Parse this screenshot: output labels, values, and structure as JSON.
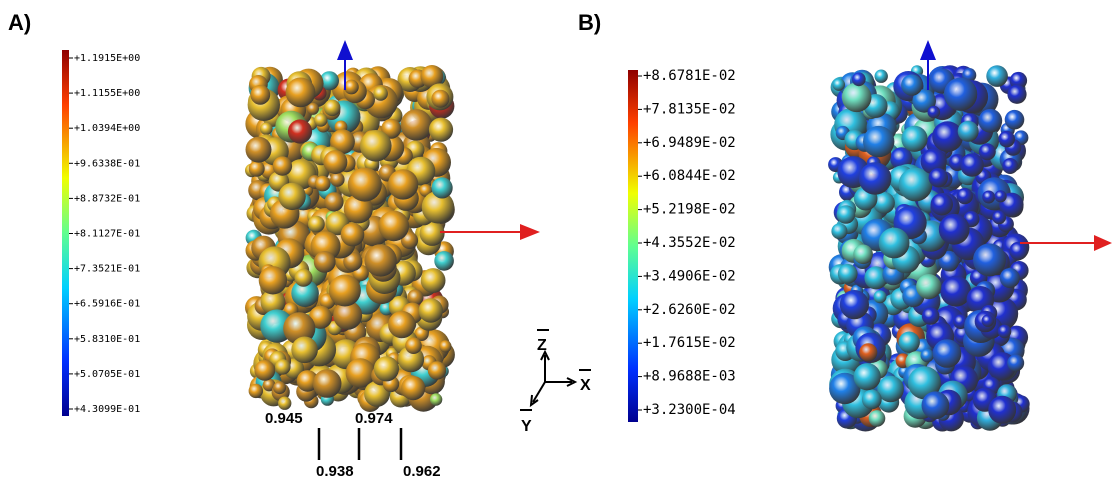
{
  "panels": [
    {
      "label": "A)",
      "colorbar_labels": [
        "+1.1915E+00",
        "+1.1155E+00",
        "+1.0394E+00",
        "+9.6338E-01",
        "+8.8732E-01",
        "+8.1127E-01",
        "+7.3521E-01",
        "+6.5916E-01",
        "+5.8310E-01",
        "+5.0705E-01",
        "+4.3099E-01"
      ],
      "annotations": [
        "0.945",
        "0.974",
        "0.938",
        "0.962"
      ],
      "triad": [
        "Z",
        "X",
        "Y"
      ]
    },
    {
      "label": "B)",
      "colorbar_labels": [
        "+8.6781E-02",
        "+7.8135E-02",
        "+6.9489E-02",
        "+6.0844E-02",
        "+5.2198E-02",
        "+4.3552E-02",
        "+3.4906E-02",
        "+2.6260E-02",
        "+1.7615E-02",
        "+8.9688E-03",
        "+3.2300E-04"
      ]
    }
  ]
}
